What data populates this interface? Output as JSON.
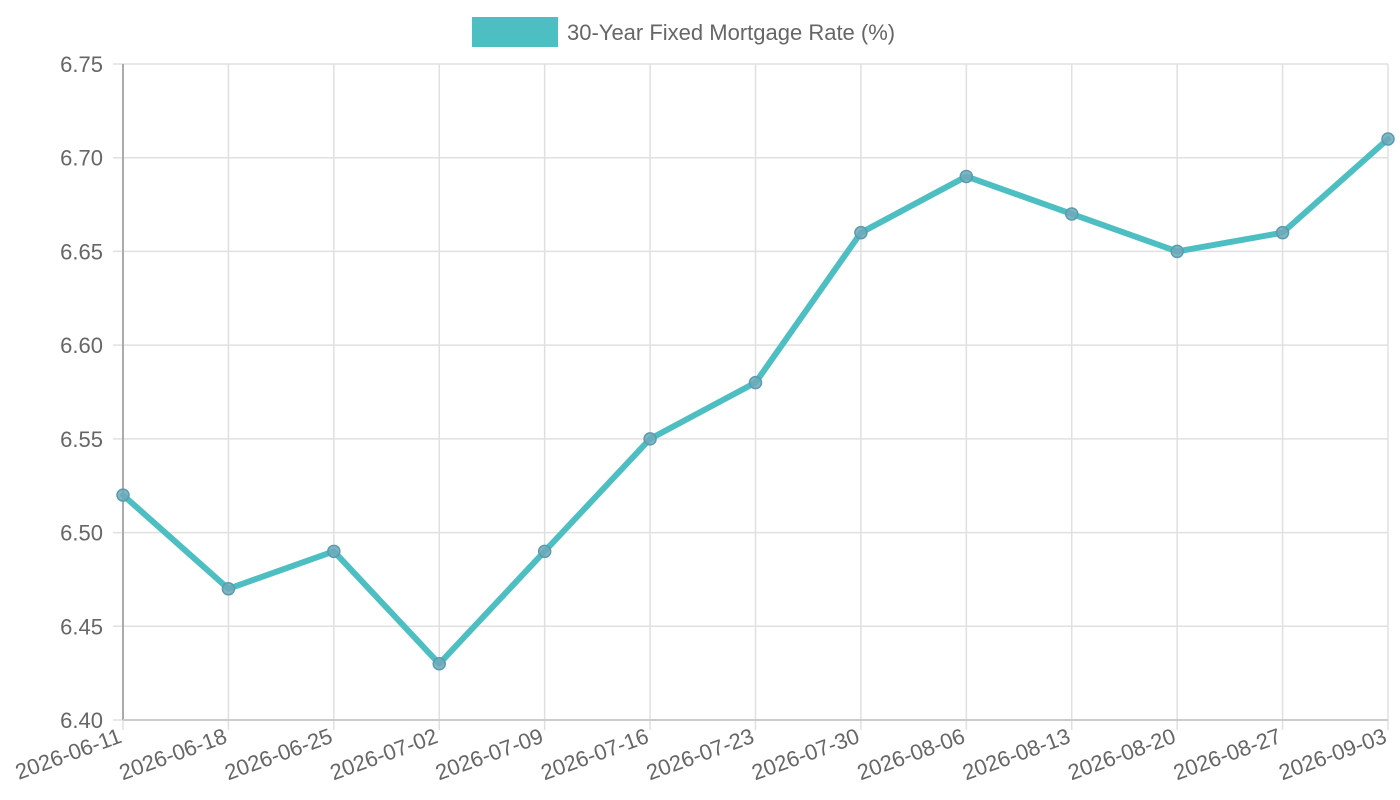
{
  "chart_data": {
    "type": "line",
    "title": "",
    "xlabel": "",
    "ylabel": "",
    "x": [
      "2026-06-11",
      "2026-06-18",
      "2026-06-25",
      "2026-07-02",
      "2026-07-09",
      "2026-07-16",
      "2026-07-23",
      "2026-07-30",
      "2026-08-06",
      "2026-08-13",
      "2026-08-20",
      "2026-08-27",
      "2026-09-03"
    ],
    "series": [
      {
        "name": "30-Year Fixed Mortgage Rate (%)",
        "values": [
          6.52,
          6.47,
          6.49,
          6.43,
          6.49,
          6.55,
          6.58,
          6.66,
          6.69,
          6.67,
          6.65,
          6.66,
          6.71
        ],
        "color": "#4dbfc2"
      }
    ],
    "ylim": [
      6.4,
      6.75
    ],
    "yticks": [
      "6.40",
      "6.45",
      "6.50",
      "6.55",
      "6.60",
      "6.65",
      "6.70",
      "6.75"
    ],
    "grid": true,
    "legend_position": "top-center"
  }
}
